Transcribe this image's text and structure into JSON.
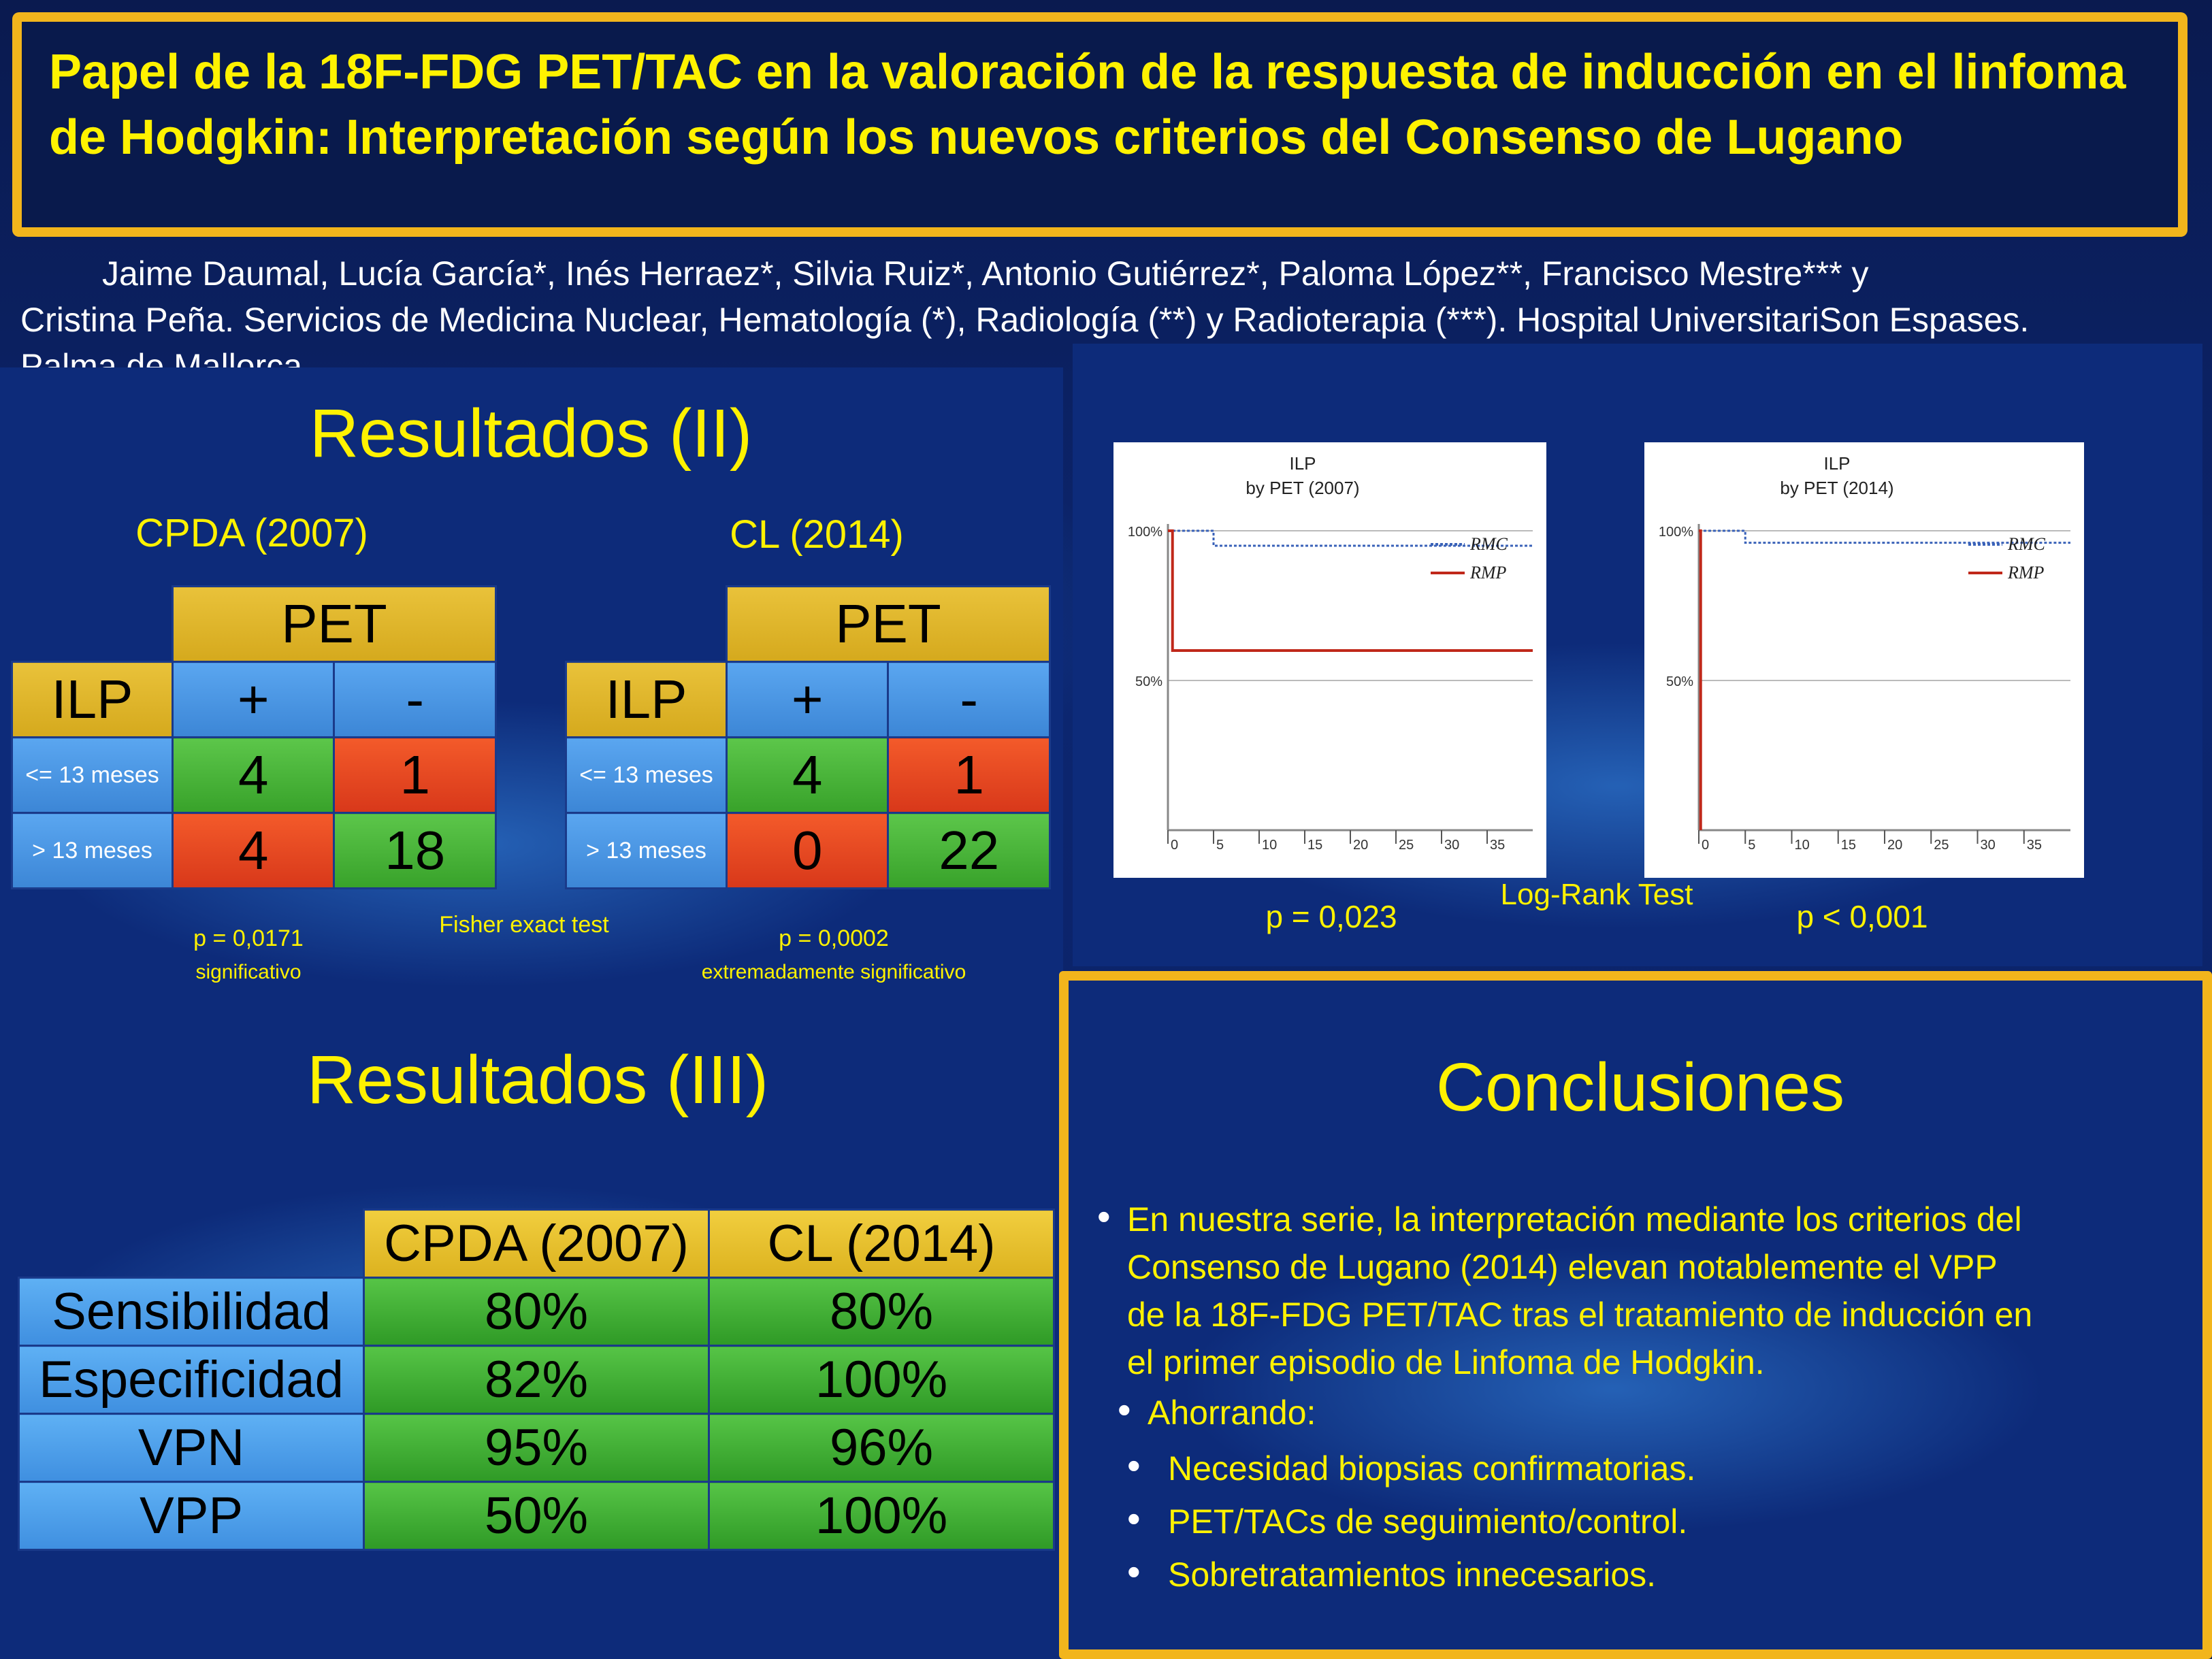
{
  "title": "Papel de la 18F-FDG PET/TAC en la valoración de la respuesta de inducción en el linfoma de Hodgkin: Interpretación según los nuevos criterios del Consenso de Lugano",
  "authors": {
    "line1": "Jaime Daumal, Lucía García*, Inés Herraez*, Silvia Ruiz*, Antonio Gutiérrez*, Paloma López**, Francisco Mestre*** y",
    "line2": "Cristina Peña. Servicios de Medicina Nuclear, Hematología (*), Radiología (**) y Radioterapia (***). Hospital UniversitariSon Espases.",
    "line3": "Palma de Mallorca."
  },
  "results2": {
    "heading": "Resultados (II)",
    "fisher": "Fisher exact test",
    "tables": [
      {
        "title": "CPDA (2007)",
        "col_header": "PET",
        "row_header": "ILP",
        "pos": "+",
        "neg": "-",
        "rows": [
          {
            "label": "<= 13 meses",
            "pos": "4",
            "neg": "1"
          },
          {
            "label": "> 13 meses",
            "pos": "4",
            "neg": "18"
          }
        ],
        "p": "p = 0,0171",
        "sig": "significativo"
      },
      {
        "title": "CL (2014)",
        "col_header": "PET",
        "row_header": "ILP",
        "pos": "+",
        "neg": "-",
        "rows": [
          {
            "label": "<= 13 meses",
            "pos": "4",
            "neg": "1"
          },
          {
            "label": "> 13 meses",
            "pos": "0",
            "neg": "22"
          }
        ],
        "p": "p = 0,0002",
        "sig": "extremadamente significativo"
      }
    ]
  },
  "km": {
    "test": "Log-Rank Test",
    "p_left": "p = 0,023",
    "p_right": "p < 0,001"
  },
  "chart_data": [
    {
      "type": "line",
      "title": "ILP",
      "subtitle": "by PET (2007)",
      "x_ticks": [
        "0",
        "5",
        "10",
        "15",
        "20",
        "25",
        "30",
        "35"
      ],
      "y_ticks": [
        "100%",
        "50%"
      ],
      "series": [
        {
          "name": "RMC",
          "color": "#3a62b8",
          "x": [
            0,
            5,
            5,
            40
          ],
          "y": [
            100,
            100,
            95,
            95
          ]
        },
        {
          "name": "RMP",
          "color": "#c0281a",
          "x": [
            0,
            0.5,
            0.5,
            40
          ],
          "y": [
            100,
            100,
            60,
            60
          ]
        }
      ],
      "ylim": [
        0,
        100
      ],
      "xlim": [
        0,
        40
      ]
    },
    {
      "type": "line",
      "title": "ILP",
      "subtitle": "by PET (2014)",
      "x_ticks": [
        "0",
        "5",
        "10",
        "15",
        "20",
        "25",
        "30",
        "35"
      ],
      "y_ticks": [
        "100%",
        "50%"
      ],
      "series": [
        {
          "name": "RMC",
          "color": "#3a62b8",
          "x": [
            0,
            5,
            5,
            40
          ],
          "y": [
            100,
            100,
            96,
            96
          ]
        },
        {
          "name": "RMP",
          "color": "#c0281a",
          "x": [
            0,
            0.2,
            0.2
          ],
          "y": [
            100,
            100,
            0
          ]
        }
      ],
      "ylim": [
        0,
        100
      ],
      "xlim": [
        0,
        40
      ]
    }
  ],
  "results3": {
    "heading": "Resultados (III)",
    "cols": [
      "CPDA (2007)",
      "CL (2014)"
    ],
    "rows": [
      {
        "label": "Sensibilidad",
        "a": "80%",
        "b": "80%"
      },
      {
        "label": "Especificidad",
        "a": "82%",
        "b": "100%"
      },
      {
        "label": "VPN",
        "a": "95%",
        "b": "96%"
      },
      {
        "label": "VPP",
        "a": "50%",
        "b": "100%"
      }
    ]
  },
  "conclusions": {
    "heading": "Conclusiones",
    "main_l1": "En nuestra serie, la interpretación mediante los criterios del",
    "main_l2": "Consenso de Lugano (2014) elevan notablemente el VPP",
    "main_l3": "de la 18F-FDG PET/TAC tras el tratamiento de inducción en",
    "main_l4": "el primer episodio de Linfoma de Hodgkin.",
    "sub": "Ahorrando:",
    "items": [
      "Necesidad biopsias confirmatorias.",
      "PET/TACs de seguimiento/control.",
      "Sobretratamientos innecesarios."
    ]
  }
}
